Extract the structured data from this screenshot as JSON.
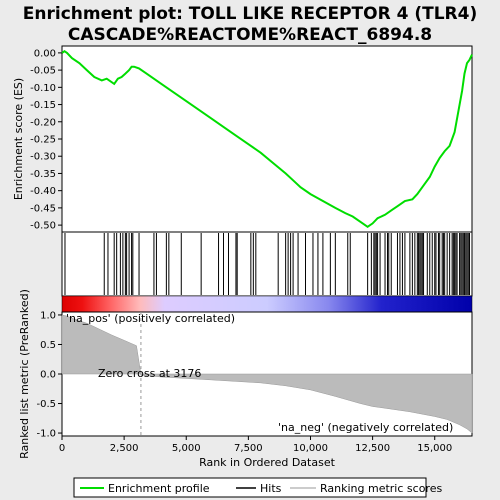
{
  "chart_data": {
    "type": "line",
    "title_lines": [
      "Enrichment plot: TOLL LIKE RECEPTOR 4 (TLR4)",
      "CASCADE%REACTOME%REACT_6894.8"
    ],
    "panels": {
      "top": {
        "ylabel": "Enrichment score (ES)",
        "ylim": [
          -0.52,
          0.02
        ],
        "yticks": [
          0.0,
          -0.05,
          -0.1,
          -0.15,
          -0.2,
          -0.25,
          -0.3,
          -0.35,
          -0.4,
          -0.45,
          -0.5
        ],
        "ytick_labels": [
          "0.00",
          "-0.05",
          "-0.10",
          "-0.15",
          "-0.20",
          "-0.25",
          "-0.30",
          "-0.35",
          "-0.40",
          "-0.45",
          "-0.50"
        ],
        "series": [
          {
            "name": "Enrichment profile",
            "color": "#00dd00",
            "x": [
              0,
              100,
              200,
              400,
              700,
              1000,
              1300,
              1600,
              1800,
              1900,
              2100,
              2250,
              2400,
              2550,
              2700,
              2800,
              2900,
              3100,
              3400,
              4000,
              5000,
              6000,
              7000,
              7500,
              8000,
              8500,
              9000,
              9300,
              9600,
              10000,
              10500,
              11000,
              11400,
              11700,
              12000,
              12300,
              12500,
              12700,
              13000,
              13300,
              13500,
              13800,
              14100,
              14300,
              14500,
              14800,
              15000,
              15200,
              15400,
              15600,
              15800,
              15900,
              16000,
              16100,
              16200,
              16300,
              16400,
              16500
            ],
            "y": [
              0.0,
              0.005,
              0.0,
              -0.015,
              -0.03,
              -0.05,
              -0.07,
              -0.08,
              -0.075,
              -0.08,
              -0.09,
              -0.075,
              -0.07,
              -0.06,
              -0.05,
              -0.04,
              -0.04,
              -0.045,
              -0.06,
              -0.09,
              -0.14,
              -0.19,
              -0.24,
              -0.265,
              -0.29,
              -0.32,
              -0.35,
              -0.37,
              -0.39,
              -0.41,
              -0.43,
              -0.45,
              -0.465,
              -0.475,
              -0.49,
              -0.505,
              -0.495,
              -0.48,
              -0.47,
              -0.455,
              -0.445,
              -0.43,
              -0.425,
              -0.41,
              -0.39,
              -0.36,
              -0.33,
              -0.305,
              -0.285,
              -0.27,
              -0.23,
              -0.19,
              -0.15,
              -0.11,
              -0.06,
              -0.03,
              -0.02,
              -0.005
            ]
          }
        ]
      },
      "hits": {
        "label": "Hits",
        "positions": [
          120,
          1700,
          1850,
          2100,
          2200,
          2350,
          2450,
          2550,
          2600,
          2700,
          2800,
          2850,
          3100,
          3700,
          3800,
          4200,
          4300,
          4800,
          5600,
          6300,
          6500,
          6700,
          7000,
          7050,
          7600,
          7700,
          7800,
          8700,
          9000,
          9100,
          9200,
          9300,
          9500,
          9800,
          10100,
          10300,
          10500,
          10800,
          11000,
          11500,
          11600,
          12300,
          12450,
          12550,
          12600,
          12650,
          12700,
          12800,
          13000,
          13100,
          13150,
          13250,
          13500,
          13600,
          13700,
          13800,
          14000,
          14100,
          14200,
          14300,
          14350,
          14400,
          14450,
          14500,
          14550,
          14700,
          14800,
          14900,
          15000,
          15050,
          15150,
          15200,
          15300,
          15350,
          15400,
          15500,
          15600,
          15700,
          15750,
          15800,
          15850,
          15900,
          16000,
          16050,
          16100,
          16150,
          16200,
          16250,
          16300,
          16350,
          16400
        ]
      },
      "bottom": {
        "ylabel": "Ranked list metric (PreRanked)",
        "ylim": [
          -1.05,
          1.05
        ],
        "yticks": [
          1.0,
          0.5,
          0.0,
          -0.5,
          -1.0
        ],
        "ytick_labels": [
          "1.0",
          "0.5",
          "0.0",
          "-0.5",
          "-1.0"
        ],
        "xlabel": "Rank in Ordered Dataset",
        "xlim": [
          0,
          16500
        ],
        "xticks": [
          0,
          2500,
          5000,
          7500,
          10000,
          12500,
          15000
        ],
        "xtick_labels": [
          "0",
          "2,500",
          "5,000",
          "7,500",
          "10,000",
          "12,500",
          "15,000"
        ],
        "metric": {
          "name": "Ranking metric scores",
          "color": "#bbbbbb",
          "x": [
            0,
            200,
            500,
            1000,
            1500,
            2000,
            2500,
            3000,
            3176,
            3176,
            4000,
            6000,
            8000,
            9000,
            10000,
            11000,
            12000,
            12500,
            13000,
            14000,
            15000,
            15500,
            16000,
            16300,
            16500
          ],
          "y": [
            1.0,
            0.98,
            0.93,
            0.86,
            0.76,
            0.66,
            0.57,
            0.48,
            0.0,
            -0.02,
            -0.05,
            -0.1,
            -0.15,
            -0.2,
            -0.27,
            -0.38,
            -0.5,
            -0.55,
            -0.58,
            -0.64,
            -0.72,
            -0.77,
            -0.86,
            -0.93,
            -1.0
          ]
        },
        "zero_cross_label": "Zero cross at 3176",
        "pos_label": "'na_pos' (positively correlated)",
        "neg_label": "'na_neg' (negatively correlated)",
        "pos_label_color": "#cc0000",
        "neg_label_color": "#0000cc"
      }
    },
    "legend": {
      "placement": "bottom",
      "entries": [
        {
          "label": "Enrichment profile",
          "color": "#00dd00"
        },
        {
          "label": "Hits",
          "color": "#000000"
        },
        {
          "label": "Ranking metric scores",
          "color": "#bbbbbb"
        }
      ]
    }
  }
}
